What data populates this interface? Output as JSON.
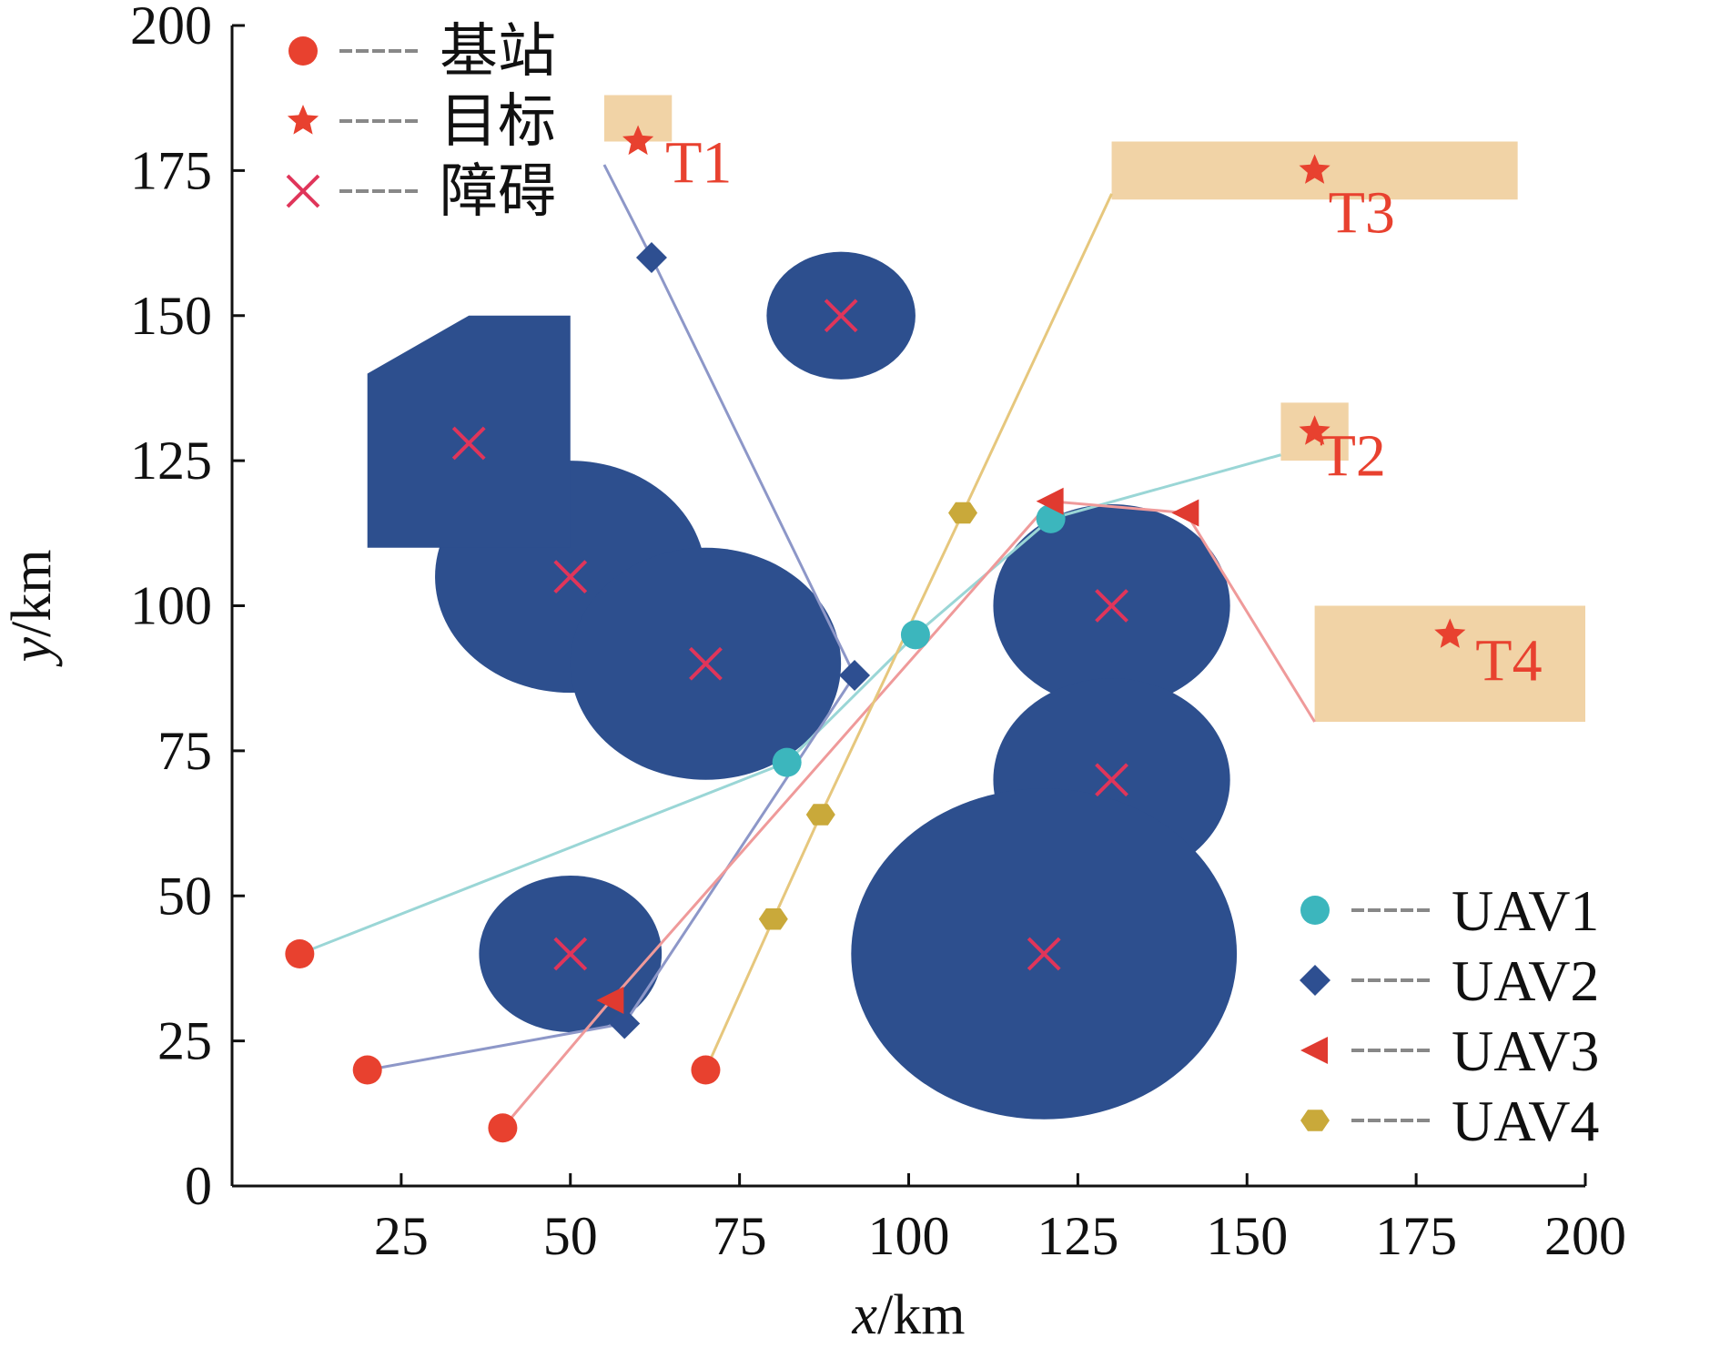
{
  "chart_data": {
    "type": "scatter",
    "title": "",
    "xlabel": {
      "var": "x",
      "unit": "/km"
    },
    "ylabel": {
      "var": "y",
      "unit": "/km"
    },
    "xlim": [
      0,
      200
    ],
    "ylim": [
      0,
      200
    ],
    "xticks": [
      25,
      50,
      75,
      100,
      125,
      150,
      175,
      200
    ],
    "yticks": [
      0,
      25,
      50,
      75,
      100,
      125,
      150,
      175,
      200
    ],
    "grid": false,
    "colors": {
      "obstacle": "#2d4f8e",
      "base": "#e8412f",
      "target": "#e8412f",
      "target_region": "#f1d3a6",
      "obstacle_mark": "#e0355a",
      "uav1": "#3cb6bd",
      "uav2": "#2e4f91",
      "uav3": "#e03a30",
      "uav4": "#c9a93a",
      "uav1_path": "#9ad6d6",
      "uav2_path": "#8d97c8",
      "uav3_path": "#ef9a9a",
      "uav4_path": "#e6c77d"
    },
    "legend_top": {
      "position": "top-left",
      "items": [
        {
          "marker": "circle",
          "label": "基站"
        },
        {
          "marker": "star",
          "label": "目标"
        },
        {
          "marker": "cross",
          "label": "障碍"
        }
      ]
    },
    "legend_bottom": {
      "position": "bottom-right",
      "items": [
        {
          "marker": "circle",
          "series": "uav1",
          "label": "UAV1"
        },
        {
          "marker": "diamond",
          "series": "uav2",
          "label": "UAV2"
        },
        {
          "marker": "triangle-left",
          "series": "uav3",
          "label": "UAV3"
        },
        {
          "marker": "hexagon",
          "series": "uav4",
          "label": "UAV4"
        }
      ]
    },
    "obstacles": {
      "circles": [
        {
          "cx": 90,
          "cy": 150,
          "r": 11
        },
        {
          "cx": 50,
          "cy": 105,
          "r": 20
        },
        {
          "cx": 70,
          "cy": 90,
          "r": 20
        },
        {
          "cx": 50,
          "cy": 40,
          "r": 13.5
        },
        {
          "cx": 130,
          "cy": 100,
          "r": 17.5
        },
        {
          "cx": 130,
          "cy": 70,
          "r": 17.5
        },
        {
          "cx": 120,
          "cy": 40,
          "r": 28.5
        }
      ],
      "polygons": [
        [
          [
            20,
            110
          ],
          [
            20,
            140
          ],
          [
            35,
            150
          ],
          [
            50,
            150
          ],
          [
            50,
            110
          ]
        ]
      ],
      "centers": [
        [
          90,
          150
        ],
        [
          35,
          128
        ],
        [
          50,
          105
        ],
        [
          70,
          90
        ],
        [
          50,
          40
        ],
        [
          130,
          100
        ],
        [
          130,
          70
        ],
        [
          120,
          40
        ]
      ]
    },
    "targets": [
      {
        "label": "T1",
        "point": [
          60,
          180
        ],
        "region": [
          [
            55,
            180
          ],
          [
            65,
            188
          ]
        ]
      },
      {
        "label": "T2",
        "point": [
          160,
          130
        ],
        "region": [
          [
            155,
            125
          ],
          [
            165,
            135
          ]
        ]
      },
      {
        "label": "T3",
        "point": [
          160,
          175
        ],
        "region": [
          [
            130,
            170
          ],
          [
            190,
            180
          ]
        ]
      },
      {
        "label": "T4",
        "point": [
          180,
          95
        ],
        "region": [
          [
            160,
            80
          ],
          [
            200,
            100
          ]
        ]
      }
    ],
    "bases": [
      [
        10,
        40
      ],
      [
        20,
        20
      ],
      [
        40,
        10
      ],
      [
        70,
        20
      ]
    ],
    "series": [
      {
        "name": "UAV1",
        "key": "uav1",
        "marker": "circle",
        "path": [
          [
            10,
            40
          ],
          [
            82,
            73
          ],
          [
            101,
            95
          ],
          [
            121,
            115
          ],
          [
            155,
            126
          ]
        ],
        "markers": [
          [
            82,
            73
          ],
          [
            101,
            95
          ],
          [
            121,
            115
          ]
        ]
      },
      {
        "name": "UAV2",
        "key": "uav2",
        "marker": "diamond",
        "path": [
          [
            20,
            20
          ],
          [
            58,
            28
          ],
          [
            92,
            88
          ],
          [
            62,
            160
          ],
          [
            55,
            176
          ]
        ],
        "markers": [
          [
            58,
            28
          ],
          [
            92,
            88
          ],
          [
            62,
            160
          ]
        ]
      },
      {
        "name": "UAV3",
        "key": "uav3",
        "marker": "triangle-left",
        "path": [
          [
            40,
            10
          ],
          [
            56,
            32
          ],
          [
            121,
            118
          ],
          [
            141,
            116
          ],
          [
            160,
            80
          ]
        ],
        "markers": [
          [
            56,
            32
          ],
          [
            121,
            118
          ],
          [
            141,
            116
          ]
        ]
      },
      {
        "name": "UAV4",
        "key": "uav4",
        "marker": "hexagon",
        "path": [
          [
            70,
            20
          ],
          [
            80,
            46
          ],
          [
            87,
            64
          ],
          [
            108,
            116
          ],
          [
            130,
            171
          ]
        ],
        "markers": [
          [
            80,
            46
          ],
          [
            87,
            64
          ],
          [
            108,
            116
          ]
        ]
      }
    ]
  }
}
